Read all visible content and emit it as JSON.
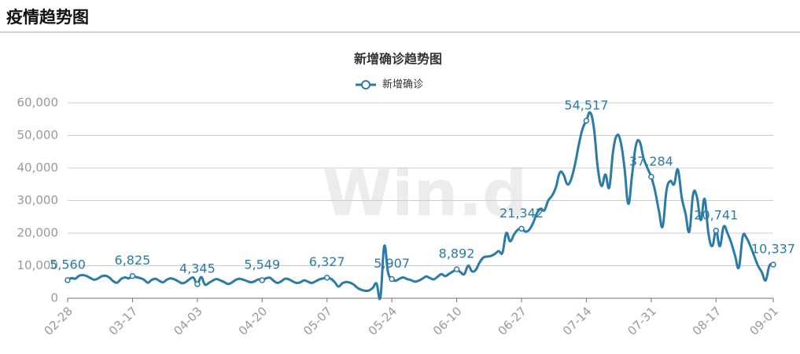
{
  "header": {
    "title": "疫情趋势图"
  },
  "chart_data": {
    "type": "line",
    "title": "新增确诊趋势图",
    "watermark": "Win.d",
    "categories": [
      "02-28",
      null,
      null,
      null,
      null,
      null,
      null,
      null,
      null,
      null,
      null,
      null,
      null,
      null,
      null,
      null,
      null,
      "03-17",
      null,
      null,
      null,
      null,
      null,
      null,
      null,
      null,
      null,
      null,
      null,
      null,
      null,
      null,
      null,
      null,
      "04-03",
      null,
      null,
      null,
      null,
      null,
      null,
      null,
      null,
      null,
      null,
      null,
      null,
      null,
      null,
      null,
      null,
      "04-20",
      null,
      null,
      null,
      null,
      null,
      null,
      null,
      null,
      null,
      null,
      null,
      null,
      null,
      null,
      null,
      null,
      "05-07",
      null,
      null,
      null,
      null,
      null,
      null,
      null,
      null,
      null,
      null,
      null,
      null,
      null,
      null,
      null,
      null,
      "05-24",
      null,
      null,
      null,
      null,
      null,
      null,
      null,
      null,
      null,
      null,
      null,
      null,
      null,
      null,
      null,
      null,
      "06-10",
      null,
      null,
      null,
      null,
      null,
      null,
      null,
      null,
      null,
      null,
      null,
      null,
      null,
      null,
      null,
      null,
      "06-27",
      null,
      null,
      null,
      null,
      null,
      null,
      null,
      null,
      null,
      null,
      null,
      null,
      null,
      null,
      null,
      null,
      "07-14",
      null,
      null,
      null,
      null,
      null,
      null,
      null,
      null,
      null,
      null,
      null,
      null,
      null,
      null,
      null,
      null,
      "07-31",
      null,
      null,
      null,
      null,
      null,
      null,
      null,
      null,
      null,
      null,
      null,
      null,
      null,
      null,
      null,
      null,
      "08-17",
      null,
      null,
      null,
      null,
      null,
      null,
      null,
      null,
      null,
      null,
      null,
      null,
      null,
      null,
      "09-01"
    ],
    "series": [
      {
        "name": "新增确诊",
        "color": "#2b7ba8",
        "values": [
          5560,
          6200,
          6000,
          6900,
          7100,
          6800,
          6200,
          5700,
          6100,
          6800,
          6900,
          6300,
          5200,
          4800,
          5900,
          6400,
          6100,
          6825,
          6500,
          6200,
          5700,
          4800,
          5600,
          6000,
          5400,
          4900,
          5700,
          6100,
          5800,
          5200,
          4600,
          5000,
          5900,
          6300,
          4345,
          6500,
          4200,
          4700,
          5400,
          5900,
          5500,
          5000,
          4400,
          4800,
          5600,
          6000,
          5700,
          5300,
          4900,
          5200,
          5800,
          5549,
          6100,
          6300,
          5400,
          4700,
          5200,
          6000,
          5800,
          5200,
          4700,
          4900,
          5500,
          5100,
          4700,
          5200,
          5800,
          6100,
          6327,
          6000,
          5000,
          3600,
          4600,
          5000,
          4800,
          4200,
          3200,
          2600,
          2300,
          2400,
          3200,
          4500,
          300,
          16000,
          8000,
          5907,
          5400,
          6000,
          6400,
          5900,
          5600,
          5100,
          5400,
          6000,
          6700,
          6200,
          5800,
          6600,
          7400,
          6800,
          7500,
          8200,
          8892,
          8000,
          7400,
          10000,
          8300,
          8700,
          11000,
          12500,
          12800,
          13000,
          13600,
          14500,
          14000,
          20000,
          17500,
          19500,
          21000,
          21342,
          20500,
          21000,
          23000,
          26000,
          27500,
          27000,
          30000,
          31500,
          34000,
          38500,
          38000,
          35000,
          36500,
          41000,
          47000,
          52000,
          54517,
          57000,
          52000,
          40000,
          34500,
          38000,
          34000,
          45000,
          50000,
          48000,
          40000,
          29000,
          38000,
          47000,
          48000,
          43000,
          40000,
          37284,
          33000,
          27000,
          22000,
          33000,
          36000,
          35000,
          39500,
          31000,
          26000,
          20500,
          32000,
          31000,
          24000,
          30500,
          20000,
          16000,
          20741,
          16000,
          22000,
          20000,
          17000,
          13000,
          9500,
          19000,
          18500,
          16000,
          13000,
          10000,
          8000,
          5500,
          10000,
          10337
        ],
        "value_labels": [
          "5,560",
          null,
          null,
          null,
          null,
          null,
          null,
          null,
          null,
          null,
          null,
          null,
          null,
          null,
          null,
          null,
          null,
          "6,825",
          null,
          null,
          null,
          null,
          null,
          null,
          null,
          null,
          null,
          null,
          null,
          null,
          null,
          null,
          null,
          null,
          "4,345",
          null,
          null,
          null,
          null,
          null,
          null,
          null,
          null,
          null,
          null,
          null,
          null,
          null,
          null,
          null,
          null,
          "5,549",
          null,
          null,
          null,
          null,
          null,
          null,
          null,
          null,
          null,
          null,
          null,
          null,
          null,
          null,
          null,
          null,
          "6,327",
          null,
          null,
          null,
          null,
          null,
          null,
          null,
          null,
          null,
          null,
          null,
          null,
          null,
          null,
          null,
          null,
          "5,907",
          null,
          null,
          null,
          null,
          null,
          null,
          null,
          null,
          null,
          null,
          null,
          null,
          null,
          null,
          null,
          null,
          "8,892",
          null,
          null,
          null,
          null,
          null,
          null,
          null,
          null,
          null,
          null,
          null,
          null,
          null,
          null,
          null,
          null,
          "21,342",
          null,
          null,
          null,
          null,
          null,
          null,
          null,
          null,
          null,
          null,
          null,
          null,
          null,
          null,
          null,
          null,
          "54,517",
          null,
          null,
          null,
          null,
          null,
          null,
          null,
          null,
          null,
          null,
          null,
          null,
          null,
          null,
          null,
          null,
          "37,284",
          null,
          null,
          null,
          null,
          null,
          null,
          null,
          null,
          null,
          null,
          null,
          null,
          null,
          null,
          null,
          null,
          "20,741",
          null,
          null,
          null,
          null,
          null,
          null,
          null,
          null,
          null,
          null,
          null,
          null,
          null,
          null,
          "10,337"
        ]
      }
    ],
    "ylim": [
      0,
      60000
    ],
    "yticks": [
      0,
      {
        "value": 10000,
        "label": "10,000"
      },
      {
        "value": 20000,
        "label": "20,000"
      },
      {
        "value": 30000,
        "label": "30,000"
      },
      {
        "value": 40000,
        "label": "40,000"
      },
      {
        "value": 50000,
        "label": "50,000"
      },
      {
        "value": 60000,
        "label": "60,000"
      }
    ],
    "grid": true,
    "legend": "top"
  }
}
